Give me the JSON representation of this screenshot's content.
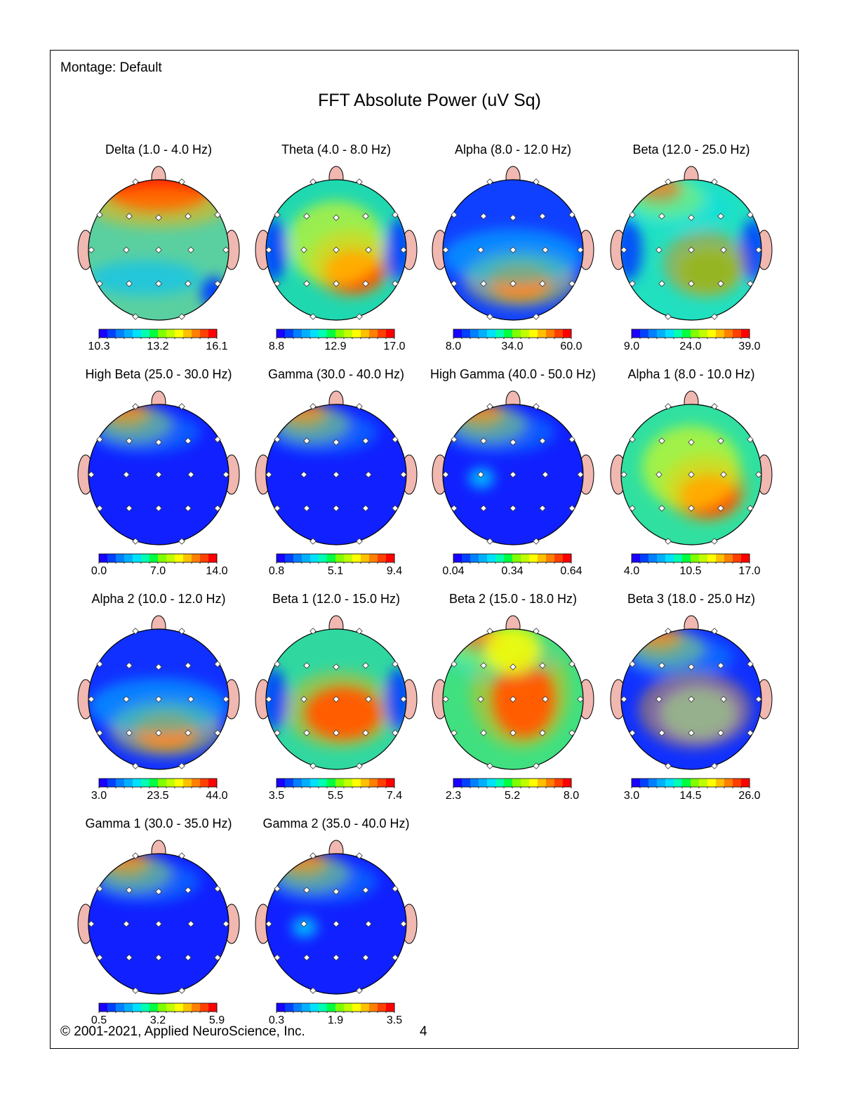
{
  "header": {
    "montage": "Montage:  Default",
    "title": "FFT Absolute Power  (uV Sq)"
  },
  "footer": {
    "copyright": "© 2001-2021, Applied NeuroScience, Inc.",
    "page_number": "4"
  },
  "colors": {
    "scale": [
      "#1a00ff",
      "#0040ff",
      "#0080ff",
      "#00b0ff",
      "#00e0ff",
      "#00ffb0",
      "#00ff40",
      "#80ff00",
      "#c0ff00",
      "#ffff00",
      "#ffc000",
      "#ff8000",
      "#ff4000",
      "#ff0000"
    ],
    "ear": "#f0b8b0",
    "electrode": "#ffffff"
  },
  "maps": [
    {
      "title": "Delta (1.0 - 4.0 Hz)",
      "ticks": [
        "10.3",
        "13.2",
        "16.1"
      ],
      "base": "#5ad0a0",
      "blobs": [
        {
          "c": "#ff1a00",
          "p": "frontal-wide"
        },
        {
          "c": "#0040ff",
          "p": "right-posterior-small"
        },
        {
          "c": "#00c0ff",
          "p": "posterior-band"
        }
      ]
    },
    {
      "title": "Theta (4.0 - 8.0 Hz)",
      "ticks": [
        "8.8",
        "12.9",
        "17.0"
      ],
      "base": "#20d8b0",
      "blobs": [
        {
          "c": "#ff1a00",
          "p": "parietal-right"
        },
        {
          "c": "#0040ff",
          "p": "temporal-left"
        },
        {
          "c": "#0040ff",
          "p": "temporal-right"
        },
        {
          "c": "#ffff00",
          "p": "central"
        }
      ]
    },
    {
      "title": "Alpha (8.0 - 12.0 Hz)",
      "ticks": [
        "8.0",
        "34.0",
        "60.0"
      ],
      "base": "#1040ff",
      "blobs": [
        {
          "c": "#ff1a00",
          "p": "parietal-center"
        },
        {
          "c": "#00d0ff",
          "p": "central-band"
        }
      ]
    },
    {
      "title": "Beta (12.0 - 25.0 Hz)",
      "ticks": [
        "9.0",
        "24.0",
        "39.0"
      ],
      "base": "#20e0c0",
      "blobs": [
        {
          "c": "#ff1a00",
          "p": "frontal-left-pole"
        },
        {
          "c": "#0040ff",
          "p": "temporal-left"
        },
        {
          "c": "#0040ff",
          "p": "temporal-right"
        },
        {
          "c": "#40e040",
          "p": "parietal-right"
        }
      ]
    },
    {
      "title": "High Beta (25.0 - 30.0 Hz)",
      "ticks": [
        "0.0",
        "7.0",
        "14.0"
      ],
      "base": "#1020ff",
      "blobs": [
        {
          "c": "#ff1a00",
          "p": "frontal-left-pole"
        }
      ]
    },
    {
      "title": "Gamma (30.0 - 40.0 Hz)",
      "ticks": [
        "0.8",
        "5.1",
        "9.4"
      ],
      "base": "#1020ff",
      "blobs": [
        {
          "c": "#ff1a00",
          "p": "frontal-left-pole"
        }
      ]
    },
    {
      "title": "High Gamma (40.0 - 50.0 Hz)",
      "ticks": [
        "0.04",
        "0.34",
        "0.64"
      ],
      "base": "#1020ff",
      "blobs": [
        {
          "c": "#ff1a00",
          "p": "frontal-left-pole"
        },
        {
          "c": "#00c0ff",
          "p": "temporal-left-small"
        }
      ]
    },
    {
      "title": "Alpha 1 (8.0 - 10.0 Hz)",
      "ticks": [
        "4.0",
        "10.5",
        "17.0"
      ],
      "base": "#30e0a0",
      "blobs": [
        {
          "c": "#ff1a00",
          "p": "parietal-right"
        },
        {
          "c": "#ffff00",
          "p": "central"
        }
      ]
    },
    {
      "title": "Alpha 2 (10.0 - 12.0 Hz)",
      "ticks": [
        "3.0",
        "23.5",
        "44.0"
      ],
      "base": "#1030ff",
      "blobs": [
        {
          "c": "#ff1a00",
          "p": "parietal-center"
        },
        {
          "c": "#00d0ff",
          "p": "central-band"
        }
      ]
    },
    {
      "title": "Beta 1 (12.0 - 15.0 Hz)",
      "ticks": [
        "3.5",
        "5.5",
        "7.4"
      ],
      "base": "#30d8a0",
      "blobs": [
        {
          "c": "#ff1a00",
          "p": "parietal-wide"
        },
        {
          "c": "#0040ff",
          "p": "temporal-left"
        },
        {
          "c": "#0040ff",
          "p": "temporal-right"
        }
      ]
    },
    {
      "title": "Beta 2 (15.0 - 18.0 Hz)",
      "ticks": [
        "2.3",
        "5.2",
        "8.0"
      ],
      "base": "#40e080",
      "blobs": [
        {
          "c": "#ff1a00",
          "p": "central-right"
        },
        {
          "c": "#ff1a00",
          "p": "frontal-left-pole"
        },
        {
          "c": "#ffff00",
          "p": "frontal-center"
        }
      ]
    },
    {
      "title": "Beta 3 (18.0 - 25.0 Hz)",
      "ticks": [
        "3.0",
        "14.5",
        "26.0"
      ],
      "base": "#1030ff",
      "blobs": [
        {
          "c": "#ff1a00",
          "p": "frontal-left-pole"
        },
        {
          "c": "#40b0ff",
          "p": "parietal-wide"
        }
      ]
    },
    {
      "title": "Gamma 1 (30.0 - 35.0 Hz)",
      "ticks": [
        "0.5",
        "3.2",
        "5.9"
      ],
      "base": "#1020ff",
      "blobs": [
        {
          "c": "#ff1a00",
          "p": "frontal-left-pole"
        }
      ]
    },
    {
      "title": "Gamma 2 (35.0 - 40.0 Hz)",
      "ticks": [
        "0.3",
        "1.9",
        "3.5"
      ],
      "base": "#1020ff",
      "blobs": [
        {
          "c": "#ff1a00",
          "p": "frontal-left-pole"
        },
        {
          "c": "#00c0ff",
          "p": "temporal-left-small"
        }
      ]
    }
  ]
}
